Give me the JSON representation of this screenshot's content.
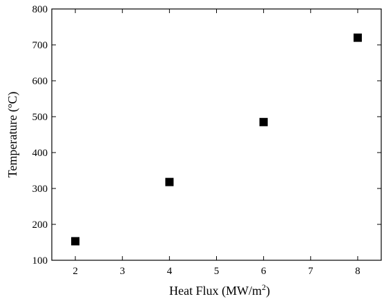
{
  "chart_data": {
    "type": "scatter",
    "title": "",
    "xlabel": "Heat Flux (MW/m",
    "xlabel_superscript": "2",
    "xlabel_suffix": ")",
    "ylabel": "Temperature (ºC)",
    "xlim": [
      1.5,
      8.5
    ],
    "ylim": [
      100,
      800
    ],
    "x_ticks": [
      2,
      3,
      4,
      5,
      6,
      7,
      8
    ],
    "x_tick_labels": [
      "2",
      "3",
      "4",
      "5",
      "6",
      "7",
      "8"
    ],
    "y_ticks": [
      100,
      200,
      300,
      400,
      500,
      600,
      700,
      800
    ],
    "y_tick_labels": [
      "100",
      "200",
      "300",
      "400",
      "500",
      "600",
      "700",
      "800"
    ],
    "grid": false,
    "legend": "none",
    "marker": "filled-square",
    "marker_color": "#000000",
    "series": [
      {
        "x": [
          2,
          4,
          6,
          8
        ],
        "y": [
          153,
          318,
          485,
          720
        ]
      }
    ]
  }
}
